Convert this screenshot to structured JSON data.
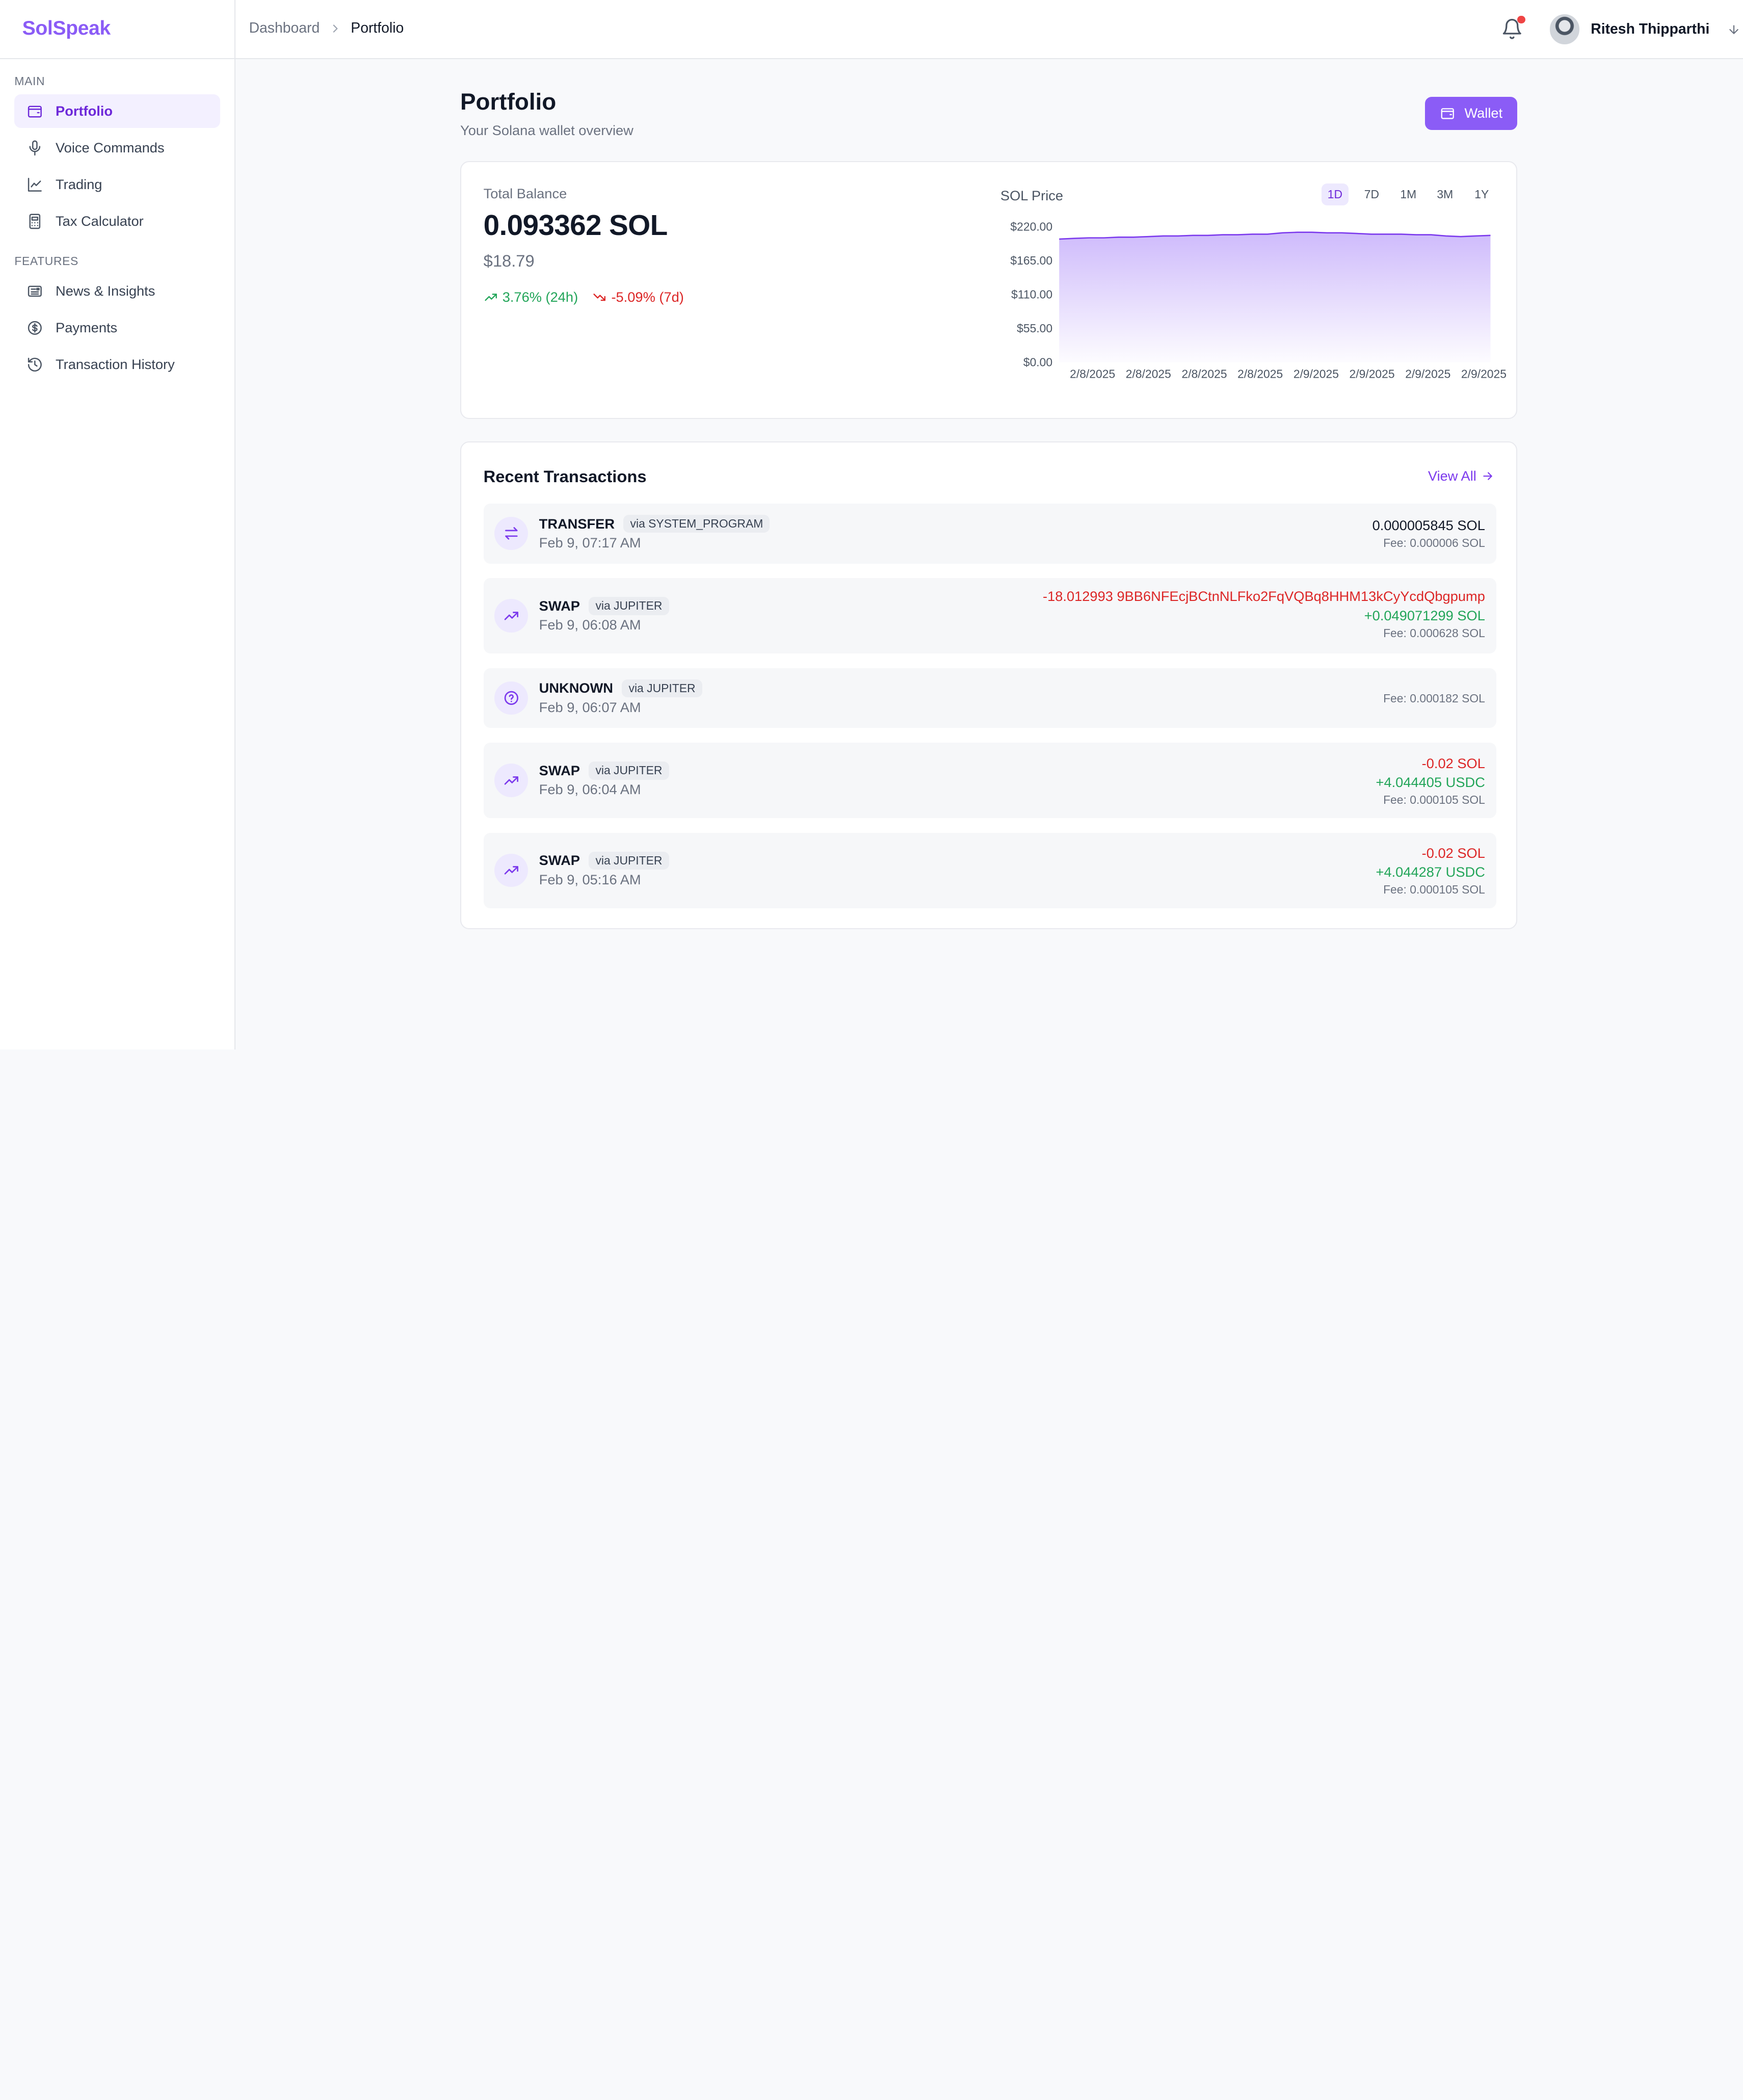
{
  "app": {
    "brand": "SolSpeak"
  },
  "breadcrumb": {
    "root": "Dashboard",
    "current": "Portfolio"
  },
  "user": {
    "name": "Ritesh Thipparthi",
    "has_notification": true
  },
  "sidebar": {
    "sections": [
      {
        "label": "MAIN",
        "items": [
          {
            "label": "Portfolio",
            "icon": "wallet-icon",
            "active": true
          },
          {
            "label": "Voice Commands",
            "icon": "microphone-icon"
          },
          {
            "label": "Trading",
            "icon": "line-chart-icon"
          },
          {
            "label": "Tax Calculator",
            "icon": "calculator-icon"
          }
        ]
      },
      {
        "label": "FEATURES",
        "items": [
          {
            "label": "News & Insights",
            "icon": "newspaper-icon"
          },
          {
            "label": "Payments",
            "icon": "dollar-circle-icon"
          },
          {
            "label": "Transaction History",
            "icon": "history-icon"
          }
        ]
      }
    ]
  },
  "page": {
    "title": "Portfolio",
    "subtitle": "Your Solana wallet overview",
    "wallet_button": "Wallet"
  },
  "balance": {
    "label": "Total Balance",
    "sol": "0.093362 SOL",
    "usd": "$18.79",
    "change_24h": "3.76% (24h)",
    "change_7d": "-5.09% (7d)"
  },
  "price_chart": {
    "title": "SOL Price",
    "ranges": [
      "1D",
      "7D",
      "1M",
      "3M",
      "1Y"
    ],
    "active_range": "1D"
  },
  "chart_data": {
    "type": "area",
    "title": "SOL Price",
    "xlabel": "",
    "ylabel": "",
    "ylim": [
      0,
      220
    ],
    "y_ticks": [
      "$220.00",
      "$165.00",
      "$110.00",
      "$55.00",
      "$0.00"
    ],
    "x_ticks": [
      "2/8/2025",
      "2/8/2025",
      "2/8/2025",
      "2/8/2025",
      "2/9/2025",
      "2/9/2025",
      "2/9/2025",
      "2/9/2025"
    ],
    "values": [
      200,
      201,
      202,
      202,
      203,
      203,
      204,
      205,
      205,
      206,
      206,
      207,
      207,
      208,
      208,
      210,
      211,
      211,
      210,
      210,
      209,
      208,
      208,
      208,
      207,
      207,
      205,
      204,
      205,
      206
    ],
    "color": "#8b5cf6",
    "grid": false
  },
  "transactions": {
    "title": "Recent Transactions",
    "view_all": "View All",
    "items": [
      {
        "type": "TRANSFER",
        "via": "via SYSTEM_PROGRAM",
        "time": "Feb 9, 07:17 AM",
        "icon": "transfer-arrows-icon",
        "amounts": [
          {
            "text": "0.000005845 SOL",
            "kind": "neutral"
          }
        ],
        "fee": "Fee: 0.000006 SOL"
      },
      {
        "type": "SWAP",
        "via": "via JUPITER",
        "time": "Feb 9, 06:08 AM",
        "icon": "trending-up-icon",
        "amounts": [
          {
            "text": "-18.012993 9BB6NFEcjBCtnNLFko2FqVQBq8HHM13kCyYcdQbgpump",
            "kind": "neg"
          },
          {
            "text": "+0.049071299 SOL",
            "kind": "pos"
          }
        ],
        "fee": "Fee: 0.000628 SOL"
      },
      {
        "type": "UNKNOWN",
        "via": "via JUPITER",
        "time": "Feb 9, 06:07 AM",
        "icon": "question-circle-icon",
        "amounts": [],
        "fee": "Fee: 0.000182 SOL"
      },
      {
        "type": "SWAP",
        "via": "via JUPITER",
        "time": "Feb 9, 06:04 AM",
        "icon": "trending-up-icon",
        "amounts": [
          {
            "text": "-0.02 SOL",
            "kind": "neg"
          },
          {
            "text": "+4.044405 USDC",
            "kind": "pos"
          }
        ],
        "fee": "Fee: 0.000105 SOL"
      },
      {
        "type": "SWAP",
        "via": "via JUPITER",
        "time": "Feb 9, 05:16 AM",
        "icon": "trending-up-icon",
        "amounts": [
          {
            "text": "-0.02 SOL",
            "kind": "neg"
          },
          {
            "text": "+4.044287 USDC",
            "kind": "pos"
          }
        ],
        "fee": "Fee: 0.000105 SOL"
      }
    ]
  }
}
